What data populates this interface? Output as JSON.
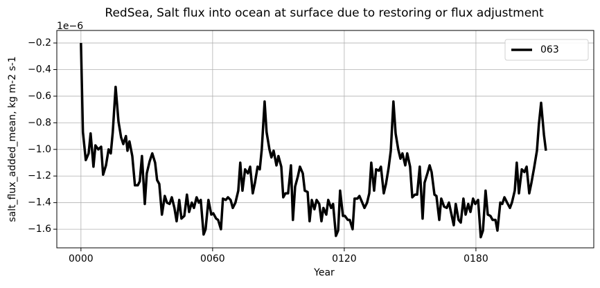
{
  "chart_data": {
    "type": "line",
    "title": "RedSea, Salt flux into ocean at surface due to restoring or flux adjustment",
    "xlabel": "Year",
    "ylabel": "salt_flux_added_mean, kg m-2 s-1",
    "y_offset_label": "1e−6",
    "x": [
      0,
      0.9,
      2.2,
      3.5,
      4.4,
      5.7,
      6.6,
      7.9,
      9.2,
      10.1,
      11.4,
      12.6,
      13.6,
      14.5,
      15.8,
      17.1,
      18.3,
      19.3,
      20.5,
      21.2,
      22.1,
      23.4,
      24.6,
      25.9,
      26.8,
      27.8,
      29.1,
      30,
      31.3,
      32.5,
      33.8,
      34.7,
      35.7,
      36.9,
      38.2,
      39.2,
      40.4,
      41.4,
      42.6,
      43.6,
      44.8,
      45.8,
      47.1,
      48.3,
      49.3,
      50.5,
      51.5,
      52.7,
      53.7,
      54.6,
      55.9,
      56.8,
      58.1,
      59.4,
      60.3,
      61.6,
      62.5,
      63.8,
      64.7,
      66,
      67,
      68.2,
      69.2,
      70.4,
      71.7,
      72.6,
      73.6,
      74.8,
      76.1,
      77.1,
      78.3,
      79.3,
      80.5,
      81.5,
      82.4,
      83.7,
      84.6,
      85.9,
      86.8,
      87.8,
      89.1,
      90,
      91.3,
      92.2,
      93.2,
      94.4,
      95.7,
      96.6,
      97.6,
      98.9,
      99.8,
      101.1,
      102,
      103.3,
      104.2,
      105.2,
      106.4,
      107.4,
      108.6,
      109.6,
      110.5,
      111.8,
      112.7,
      114,
      114.9,
      116.2,
      117.2,
      118.1,
      119.4,
      120.3,
      121.6,
      122.5,
      123.8,
      124.7,
      126,
      126.9,
      128.2,
      129.2,
      130.4,
      131.4,
      132.3,
      133.6,
      134.5,
      135.8,
      136.7,
      138,
      139,
      140.2,
      141.2,
      142.4,
      143.4,
      144.6,
      145.6,
      146.5,
      147.8,
      148.7,
      150,
      151,
      152.2,
      153.2,
      154.4,
      155.7,
      156.6,
      157.9,
      158.9,
      159.8,
      161.1,
      162,
      163.3,
      164.2,
      165.5,
      166.7,
      167.7,
      169,
      169.9,
      170.8,
      172.1,
      173.1,
      174.3,
      175.3,
      176.5,
      177.5,
      178.7,
      179.7,
      181,
      182.2,
      183.2,
      184.4,
      185.4,
      186.6,
      187.6,
      188.9,
      189.8,
      191.1,
      192,
      193,
      194.2,
      195.5,
      196.4,
      197.7,
      198.6,
      199.6,
      200.9,
      202.1,
      203.1,
      204.3,
      205.3,
      206.5,
      207.8,
      208.7,
      209.7,
      211,
      211.9
    ],
    "series": [
      {
        "name": "063",
        "color": "#000000",
        "values": [
          -0.2,
          -0.87,
          -1.08,
          -1.03,
          -0.88,
          -1.13,
          -0.97,
          -1.0,
          -0.98,
          -1.19,
          -1.12,
          -1.0,
          -1.03,
          -0.87,
          -0.53,
          -0.79,
          -0.91,
          -0.96,
          -0.9,
          -1.01,
          -0.94,
          -1.05,
          -1.27,
          -1.27,
          -1.24,
          -1.05,
          -1.41,
          -1.18,
          -1.09,
          -1.03,
          -1.1,
          -1.23,
          -1.26,
          -1.49,
          -1.35,
          -1.4,
          -1.41,
          -1.36,
          -1.44,
          -1.54,
          -1.38,
          -1.52,
          -1.5,
          -1.34,
          -1.47,
          -1.4,
          -1.44,
          -1.36,
          -1.4,
          -1.38,
          -1.64,
          -1.6,
          -1.38,
          -1.49,
          -1.48,
          -1.52,
          -1.53,
          -1.6,
          -1.37,
          -1.38,
          -1.36,
          -1.38,
          -1.44,
          -1.4,
          -1.31,
          -1.1,
          -1.31,
          -1.15,
          -1.18,
          -1.13,
          -1.33,
          -1.25,
          -1.13,
          -1.15,
          -1.0,
          -0.64,
          -0.87,
          -1.0,
          -1.06,
          -1.01,
          -1.12,
          -1.05,
          -1.13,
          -1.36,
          -1.33,
          -1.33,
          -1.12,
          -1.53,
          -1.28,
          -1.2,
          -1.13,
          -1.18,
          -1.31,
          -1.32,
          -1.54,
          -1.38,
          -1.45,
          -1.38,
          -1.41,
          -1.54,
          -1.44,
          -1.49,
          -1.38,
          -1.44,
          -1.41,
          -1.65,
          -1.61,
          -1.31,
          -1.5,
          -1.5,
          -1.53,
          -1.53,
          -1.6,
          -1.37,
          -1.37,
          -1.35,
          -1.4,
          -1.44,
          -1.4,
          -1.33,
          -1.1,
          -1.31,
          -1.15,
          -1.16,
          -1.13,
          -1.33,
          -1.26,
          -1.14,
          -1.01,
          -0.64,
          -0.88,
          -1.0,
          -1.07,
          -1.03,
          -1.12,
          -1.03,
          -1.13,
          -1.36,
          -1.34,
          -1.34,
          -1.13,
          -1.52,
          -1.25,
          -1.18,
          -1.12,
          -1.17,
          -1.34,
          -1.35,
          -1.53,
          -1.37,
          -1.43,
          -1.44,
          -1.4,
          -1.5,
          -1.57,
          -1.41,
          -1.53,
          -1.55,
          -1.37,
          -1.49,
          -1.41,
          -1.47,
          -1.37,
          -1.41,
          -1.38,
          -1.66,
          -1.61,
          -1.31,
          -1.49,
          -1.5,
          -1.53,
          -1.53,
          -1.61,
          -1.4,
          -1.41,
          -1.36,
          -1.4,
          -1.44,
          -1.4,
          -1.31,
          -1.1,
          -1.33,
          -1.15,
          -1.17,
          -1.13,
          -1.33,
          -1.25,
          -1.14,
          -1.01,
          -0.81,
          -0.65,
          -0.89,
          -1.01
        ]
      }
    ],
    "xlim": [
      -11,
      233.7
    ],
    "ylim": [
      -1.74,
      -0.106
    ],
    "xticks": [
      {
        "value": 0,
        "label": "0000"
      },
      {
        "value": 60,
        "label": "0060"
      },
      {
        "value": 120,
        "label": "0120"
      },
      {
        "value": 180,
        "label": "0180"
      }
    ],
    "yticks": [
      {
        "value": -1.6,
        "label": "−1.6"
      },
      {
        "value": -1.4,
        "label": "−1.4"
      },
      {
        "value": -1.2,
        "label": "−1.2"
      },
      {
        "value": -1.0,
        "label": "−1.0"
      },
      {
        "value": -0.8,
        "label": "−0.8"
      },
      {
        "value": -0.6,
        "label": "−0.6"
      },
      {
        "value": -0.4,
        "label": "−0.4"
      },
      {
        "value": -0.2,
        "label": "−0.2"
      }
    ],
    "grid": true,
    "legend_loc": "upper right",
    "line_width": 3.5
  }
}
